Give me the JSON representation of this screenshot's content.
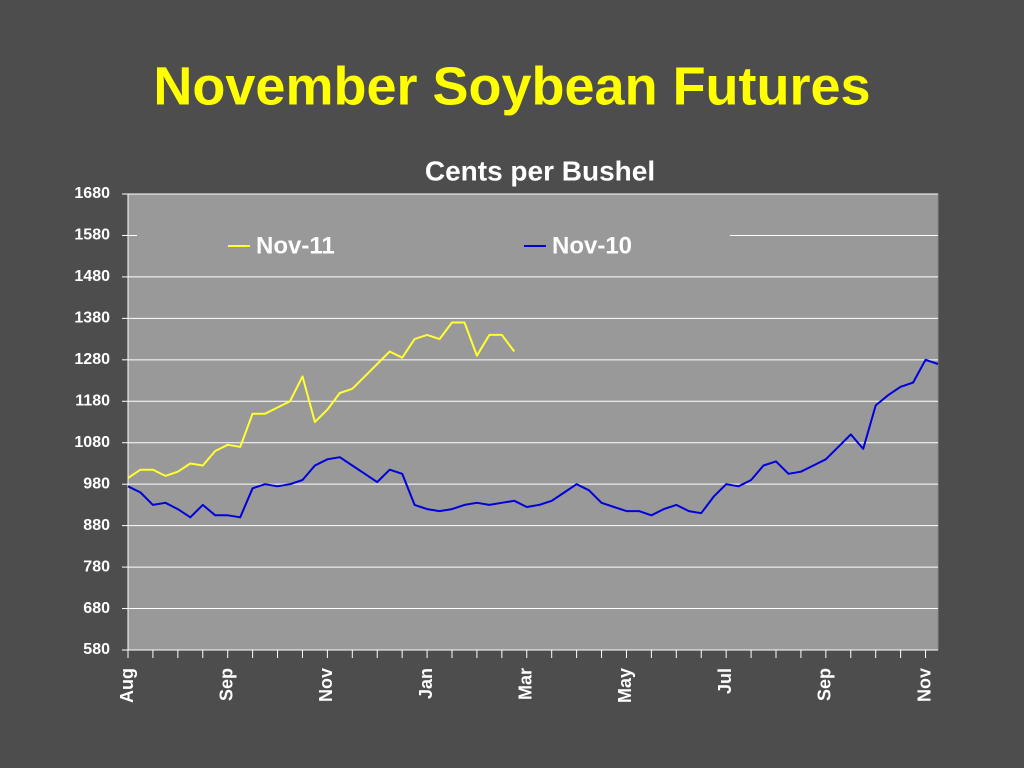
{
  "chart_data": {
    "type": "line",
    "title": "November Soybean Futures",
    "subtitle": "Cents per Bushel",
    "categories": [
      "Aug",
      null,
      null,
      null,
      null,
      null,
      null,
      null,
      "Sep",
      null,
      null,
      null,
      null,
      null,
      null,
      null,
      "Nov",
      null,
      null,
      null,
      null,
      null,
      null,
      null,
      "Jan",
      null,
      null,
      null,
      null,
      null,
      null,
      null,
      "Mar",
      null,
      null,
      null,
      null,
      null,
      null,
      null,
      "May",
      null,
      null,
      null,
      null,
      null,
      null,
      null,
      "Jul",
      null,
      null,
      null,
      null,
      null,
      null,
      null,
      "Sep",
      null,
      null,
      null,
      null,
      null,
      null,
      null,
      "Nov",
      null
    ],
    "series": [
      {
        "name": "Nov-11",
        "color": "#ffff33",
        "values": [
          995,
          1015,
          1015,
          1000,
          1010,
          1030,
          1025,
          1060,
          1075,
          1070,
          1150,
          1150,
          1165,
          1180,
          1240,
          1130,
          1160,
          1200,
          1210,
          1240,
          1270,
          1300,
          1285,
          1330,
          1340,
          1330,
          1370,
          1370,
          1290,
          1340,
          1340,
          1300,
          null,
          null,
          null,
          null,
          null,
          null,
          null,
          null,
          null,
          null,
          null,
          null,
          null,
          null,
          null,
          null,
          null,
          null,
          null,
          null,
          null,
          null,
          null,
          null,
          null,
          null,
          null,
          null,
          null,
          null,
          null,
          null,
          null,
          null
        ]
      },
      {
        "name": "Nov-10",
        "color": "#0000dd",
        "values": [
          975,
          960,
          930,
          935,
          920,
          900,
          930,
          905,
          905,
          900,
          970,
          980,
          975,
          980,
          990,
          1025,
          1040,
          1045,
          1025,
          1005,
          985,
          1015,
          1005,
          930,
          920,
          915,
          920,
          930,
          935,
          930,
          935,
          940,
          925,
          930,
          940,
          960,
          980,
          965,
          935,
          925,
          915,
          915,
          905,
          920,
          930,
          915,
          910,
          950,
          980,
          975,
          990,
          1025,
          1035,
          1005,
          1010,
          1025,
          1040,
          1070,
          1100,
          1065,
          1170,
          1195,
          1215,
          1225,
          1280,
          1270
        ]
      }
    ],
    "ylim": [
      580,
      1680
    ],
    "yticks": [
      580,
      680,
      780,
      880,
      980,
      1080,
      1180,
      1280,
      1380,
      1480,
      1580,
      1680
    ],
    "grid": true,
    "legend": "top"
  }
}
